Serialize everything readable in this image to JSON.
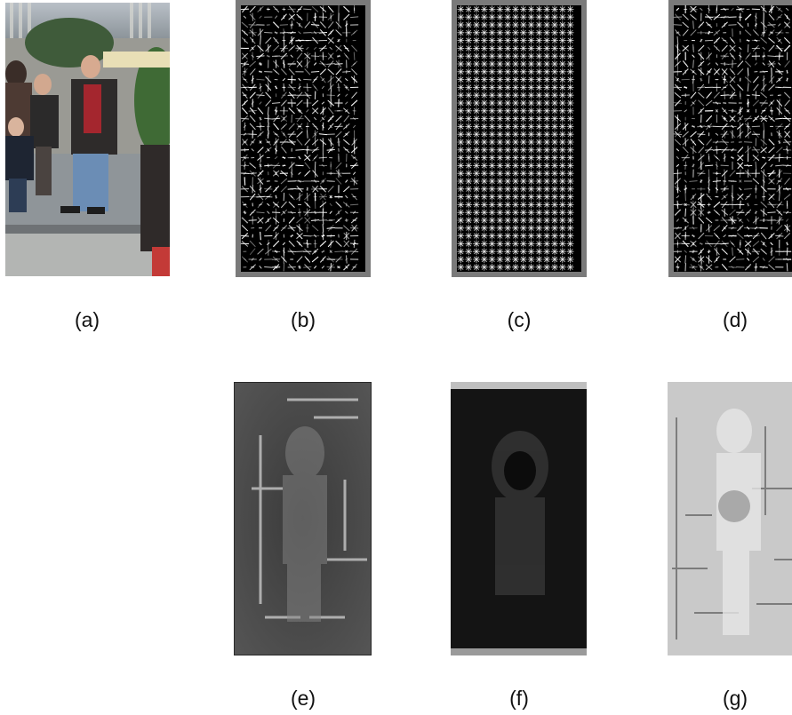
{
  "figure": {
    "captions": {
      "a": "(a)",
      "b": "(b)",
      "c": "(c)",
      "d": "(d)",
      "e": "(e)",
      "f": "(f)",
      "g": "(g)"
    },
    "panels": [
      {
        "id": "a",
        "kind": "photo",
        "description_icon": "pedestrian-photo"
      },
      {
        "id": "b",
        "kind": "hog-glyph-map",
        "background": "#000000",
        "frame": "#7a7a7a"
      },
      {
        "id": "c",
        "kind": "hog-glyph-map",
        "background": "#000000",
        "frame": "#7a7a7a"
      },
      {
        "id": "d",
        "kind": "hog-glyph-map",
        "background": "#000000",
        "frame": "#7a7a7a"
      },
      {
        "id": "e",
        "kind": "grayscale-response-map"
      },
      {
        "id": "f",
        "kind": "grayscale-response-map"
      },
      {
        "id": "g",
        "kind": "grayscale-response-map"
      }
    ]
  }
}
